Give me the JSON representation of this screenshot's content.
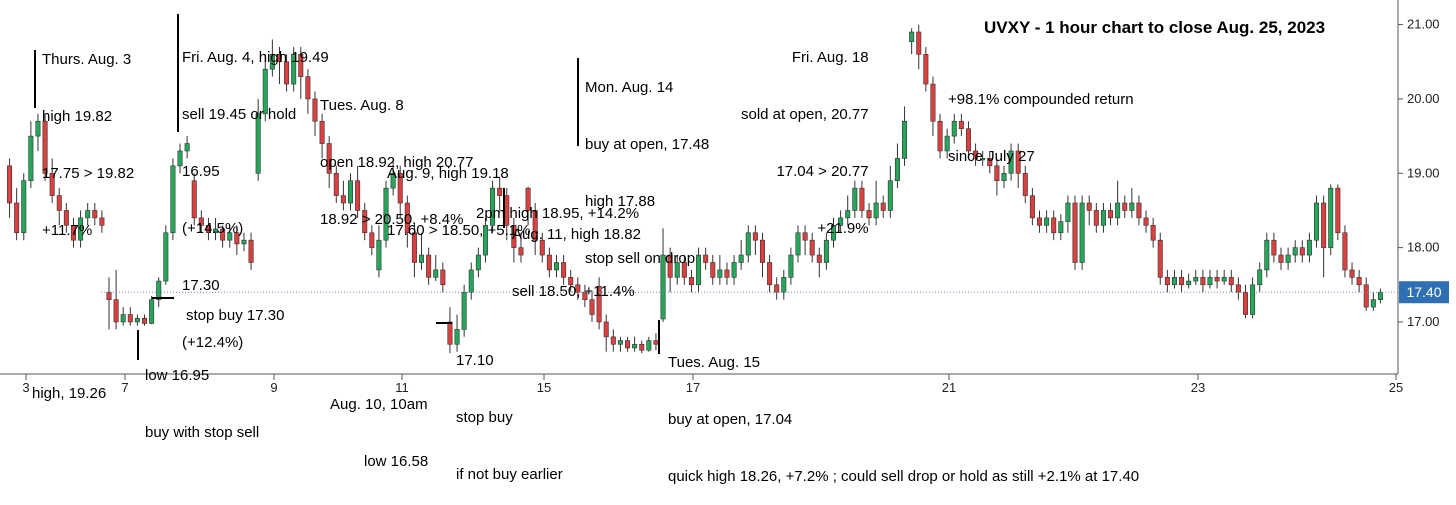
{
  "chart_data": {
    "type": "candlestick",
    "title": "UVXY - 1 hour chart to close Aug. 25, 2023",
    "ylim": [
      16.3,
      21.25
    ],
    "y_ticks": [
      "17.00",
      "18.00",
      "19.00",
      "20.00",
      "21.00"
    ],
    "x_ticks": [
      "3",
      "7",
      "9",
      "11",
      "15",
      "17",
      "21",
      "23",
      "25"
    ],
    "last_price": "17.40",
    "reference_line": 17.4,
    "colors": {
      "up": "#26a65b",
      "down": "#d9403f",
      "axis": "#555555",
      "ref_line": "#6a8bb0",
      "price_label": "#2f6fb4"
    },
    "candles": [
      [
        19.1,
        18.6,
        19.2,
        18.4
      ],
      [
        18.6,
        18.2,
        18.8,
        18.1
      ],
      [
        18.2,
        18.9,
        19.0,
        18.1
      ],
      [
        18.9,
        19.5,
        19.7,
        18.8
      ],
      [
        19.5,
        19.7,
        19.8,
        19.3
      ],
      [
        19.7,
        19.0,
        19.8,
        18.9
      ],
      [
        19.0,
        18.7,
        19.2,
        18.6
      ],
      [
        18.7,
        18.5,
        18.8,
        18.3
      ],
      [
        18.5,
        18.3,
        18.6,
        18.2
      ],
      [
        18.3,
        18.1,
        18.4,
        18.0
      ],
      [
        18.1,
        18.4,
        18.5,
        18.0
      ],
      [
        18.4,
        18.5,
        18.6,
        18.3
      ],
      [
        18.5,
        18.4,
        18.6,
        18.3
      ],
      [
        18.4,
        18.3,
        18.5,
        18.2
      ],
      [
        17.4,
        17.3,
        17.6,
        16.9
      ],
      [
        17.3,
        17.0,
        17.7,
        16.9
      ],
      [
        17.0,
        17.1,
        17.2,
        16.95
      ],
      [
        17.1,
        17.0,
        17.2,
        16.95
      ],
      [
        17.0,
        17.05,
        17.1,
        16.95
      ],
      [
        17.05,
        16.98,
        17.1,
        16.95
      ],
      [
        16.98,
        17.3,
        17.35,
        16.97
      ],
      [
        17.3,
        17.55,
        17.6,
        17.2
      ],
      [
        17.55,
        18.2,
        18.3,
        17.5
      ],
      [
        18.2,
        19.1,
        19.2,
        18.1
      ],
      [
        19.1,
        19.3,
        19.4,
        19.0
      ],
      [
        19.3,
        19.4,
        19.5,
        19.2
      ],
      [
        18.9,
        18.4,
        19.0,
        18.3
      ],
      [
        18.4,
        18.3,
        18.5,
        18.2
      ],
      [
        18.3,
        18.2,
        18.4,
        18.1
      ],
      [
        18.2,
        18.25,
        18.4,
        18.1
      ],
      [
        18.25,
        18.1,
        18.3,
        18.0
      ],
      [
        18.1,
        18.2,
        18.3,
        18.0
      ],
      [
        18.2,
        18.05,
        18.3,
        17.9
      ],
      [
        18.05,
        18.1,
        18.2,
        17.95
      ],
      [
        18.1,
        17.8,
        18.2,
        17.7
      ],
      [
        19.0,
        19.8,
        20.0,
        18.9
      ],
      [
        19.8,
        20.4,
        20.6,
        19.7
      ],
      [
        20.4,
        20.6,
        20.8,
        20.3
      ],
      [
        20.6,
        20.5,
        20.7,
        20.2
      ],
      [
        20.5,
        20.2,
        20.6,
        20.1
      ],
      [
        20.2,
        20.6,
        20.7,
        20.1
      ],
      [
        20.6,
        20.3,
        20.7,
        20.0
      ],
      [
        20.3,
        20.0,
        20.4,
        19.8
      ],
      [
        20.0,
        19.7,
        20.1,
        19.5
      ],
      [
        19.7,
        19.4,
        19.8,
        19.2
      ],
      [
        19.4,
        19.0,
        19.5,
        18.8
      ],
      [
        19.0,
        18.7,
        19.1,
        18.6
      ],
      [
        18.7,
        18.6,
        18.9,
        18.5
      ],
      [
        18.6,
        18.9,
        19.0,
        18.5
      ],
      [
        18.9,
        18.5,
        19.1,
        18.4
      ],
      [
        18.5,
        18.2,
        18.6,
        18.1
      ],
      [
        18.2,
        18.0,
        18.3,
        17.9
      ],
      [
        17.7,
        18.1,
        18.3,
        17.6
      ],
      [
        18.1,
        18.8,
        18.9,
        18.0
      ],
      [
        18.8,
        19.0,
        19.2,
        18.7
      ],
      [
        19.0,
        18.6,
        19.1,
        18.4
      ],
      [
        18.6,
        18.2,
        18.7,
        18.0
      ],
      [
        18.2,
        17.8,
        18.3,
        17.6
      ],
      [
        17.8,
        17.9,
        18.2,
        17.7
      ],
      [
        17.9,
        17.6,
        18.0,
        17.5
      ],
      [
        17.6,
        17.7,
        17.9,
        17.55
      ],
      [
        17.7,
        17.5,
        17.8,
        17.4
      ],
      [
        17.0,
        16.7,
        17.2,
        16.58
      ],
      [
        16.7,
        16.9,
        17.1,
        16.6
      ],
      [
        16.9,
        17.4,
        17.5,
        16.8
      ],
      [
        17.4,
        17.7,
        17.8,
        17.3
      ],
      [
        17.7,
        17.9,
        18.0,
        17.6
      ],
      [
        17.9,
        18.3,
        18.4,
        17.8
      ],
      [
        18.3,
        18.8,
        18.9,
        18.2
      ],
      [
        18.8,
        18.7,
        18.95,
        18.5
      ],
      [
        18.7,
        18.3,
        18.8,
        18.1
      ],
      [
        18.3,
        18.0,
        18.4,
        17.8
      ],
      [
        18.0,
        17.9,
        18.2,
        17.8
      ],
      [
        18.8,
        18.5,
        18.82,
        18.3
      ],
      [
        18.5,
        18.1,
        18.6,
        17.9
      ],
      [
        18.1,
        17.9,
        18.2,
        17.8
      ],
      [
        17.9,
        17.7,
        18.0,
        17.6
      ],
      [
        17.7,
        17.8,
        17.9,
        17.6
      ],
      [
        17.8,
        17.6,
        17.9,
        17.5
      ],
      [
        17.6,
        17.5,
        17.7,
        17.4
      ],
      [
        17.5,
        17.4,
        17.6,
        17.3
      ],
      [
        17.4,
        17.3,
        17.5,
        17.2
      ],
      [
        17.3,
        17.1,
        17.4,
        17.0
      ],
      [
        17.48,
        17.0,
        17.6,
        16.9
      ],
      [
        17.0,
        16.8,
        17.1,
        16.6
      ],
      [
        16.8,
        16.7,
        16.9,
        16.6
      ],
      [
        16.7,
        16.75,
        16.8,
        16.6
      ],
      [
        16.75,
        16.65,
        16.8,
        16.6
      ],
      [
        16.65,
        16.7,
        16.8,
        16.6
      ],
      [
        16.7,
        16.62,
        16.75,
        16.58
      ],
      [
        16.62,
        16.75,
        16.8,
        16.6
      ],
      [
        16.75,
        16.7,
        16.85,
        16.62
      ],
      [
        17.04,
        17.9,
        18.26,
        17.0
      ],
      [
        17.9,
        17.6,
        18.0,
        17.4
      ],
      [
        17.6,
        17.8,
        17.9,
        17.5
      ],
      [
        17.8,
        17.6,
        17.9,
        17.5
      ],
      [
        17.6,
        17.5,
        17.7,
        17.4
      ],
      [
        17.5,
        17.9,
        18.0,
        17.4
      ],
      [
        17.9,
        17.8,
        18.0,
        17.7
      ],
      [
        17.8,
        17.6,
        17.9,
        17.5
      ],
      [
        17.6,
        17.7,
        17.9,
        17.5
      ],
      [
        17.7,
        17.6,
        17.8,
        17.5
      ],
      [
        17.6,
        17.8,
        17.9,
        17.5
      ],
      [
        17.8,
        17.9,
        18.1,
        17.7
      ],
      [
        17.9,
        18.2,
        18.3,
        17.8
      ],
      [
        18.2,
        18.1,
        18.3,
        17.9
      ],
      [
        18.1,
        17.8,
        18.2,
        17.6
      ],
      [
        17.8,
        17.5,
        17.9,
        17.4
      ],
      [
        17.5,
        17.4,
        17.6,
        17.3
      ],
      [
        17.4,
        17.6,
        17.7,
        17.3
      ],
      [
        17.6,
        17.9,
        18.0,
        17.5
      ],
      [
        17.9,
        18.2,
        18.3,
        17.8
      ],
      [
        18.2,
        18.1,
        18.3,
        17.9
      ],
      [
        18.1,
        17.9,
        18.2,
        17.8
      ],
      [
        17.9,
        17.8,
        18.0,
        17.6
      ],
      [
        17.8,
        18.1,
        18.2,
        17.7
      ],
      [
        18.1,
        18.3,
        18.4,
        18.0
      ],
      [
        18.3,
        18.4,
        18.5,
        18.2
      ],
      [
        18.4,
        18.5,
        18.7,
        18.3
      ],
      [
        18.5,
        18.8,
        18.9,
        18.4
      ],
      [
        18.8,
        18.5,
        18.9,
        18.4
      ],
      [
        18.5,
        18.4,
        18.6,
        18.3
      ],
      [
        18.4,
        18.6,
        18.9,
        18.3
      ],
      [
        18.6,
        18.5,
        18.7,
        18.4
      ],
      [
        18.5,
        18.9,
        19.1,
        18.4
      ],
      [
        18.9,
        19.2,
        19.4,
        18.8
      ],
      [
        19.2,
        19.7,
        19.9,
        19.1
      ],
      [
        20.77,
        20.9,
        20.95,
        20.6
      ],
      [
        20.9,
        20.6,
        21.0,
        20.4
      ],
      [
        20.6,
        20.2,
        20.7,
        20.1
      ],
      [
        20.2,
        19.7,
        20.3,
        19.5
      ],
      [
        19.7,
        19.3,
        19.8,
        19.2
      ],
      [
        19.3,
        19.5,
        19.6,
        19.2
      ],
      [
        19.5,
        19.7,
        19.8,
        19.4
      ],
      [
        19.7,
        19.6,
        19.8,
        19.5
      ],
      [
        19.6,
        19.3,
        19.7,
        19.2
      ],
      [
        19.3,
        19.2,
        19.4,
        19.1
      ],
      [
        19.2,
        19.2,
        19.3,
        19.1
      ],
      [
        19.2,
        19.1,
        19.3,
        19.0
      ],
      [
        19.1,
        18.9,
        19.2,
        18.7
      ],
      [
        18.9,
        19.0,
        19.1,
        18.8
      ],
      [
        19.0,
        19.3,
        19.4,
        18.9
      ],
      [
        19.3,
        19.0,
        19.4,
        18.8
      ],
      [
        19.0,
        18.7,
        19.1,
        18.6
      ],
      [
        18.7,
        18.4,
        18.8,
        18.3
      ],
      [
        18.4,
        18.3,
        18.5,
        18.2
      ],
      [
        18.3,
        18.4,
        18.5,
        18.2
      ],
      [
        18.4,
        18.2,
        18.5,
        18.1
      ],
      [
        18.2,
        18.35,
        18.45,
        18.1
      ],
      [
        18.35,
        18.6,
        18.7,
        18.2
      ],
      [
        18.6,
        17.8,
        18.7,
        17.7
      ],
      [
        17.8,
        18.6,
        18.7,
        17.7
      ],
      [
        18.6,
        18.5,
        18.7,
        18.3
      ],
      [
        18.5,
        18.3,
        18.6,
        18.2
      ],
      [
        18.3,
        18.5,
        18.6,
        18.2
      ],
      [
        18.5,
        18.4,
        18.6,
        18.3
      ],
      [
        18.4,
        18.6,
        18.9,
        18.3
      ],
      [
        18.6,
        18.5,
        18.7,
        18.4
      ],
      [
        18.5,
        18.6,
        18.8,
        18.4
      ],
      [
        18.6,
        18.4,
        18.7,
        18.3
      ],
      [
        18.4,
        18.3,
        18.5,
        18.2
      ],
      [
        18.3,
        18.1,
        18.4,
        18.0
      ],
      [
        18.1,
        17.6,
        18.2,
        17.5
      ],
      [
        17.6,
        17.5,
        17.7,
        17.4
      ],
      [
        17.5,
        17.6,
        17.7,
        17.45
      ],
      [
        17.6,
        17.5,
        17.7,
        17.4
      ],
      [
        17.5,
        17.55,
        17.65,
        17.45
      ],
      [
        17.55,
        17.6,
        17.7,
        17.5
      ],
      [
        17.6,
        17.5,
        17.7,
        17.4
      ],
      [
        17.5,
        17.6,
        17.7,
        17.45
      ],
      [
        17.6,
        17.55,
        17.7,
        17.45
      ],
      [
        17.55,
        17.6,
        17.7,
        17.5
      ],
      [
        17.6,
        17.5,
        17.7,
        17.4
      ],
      [
        17.5,
        17.4,
        17.6,
        17.3
      ],
      [
        17.4,
        17.1,
        17.5,
        17.05
      ],
      [
        17.1,
        17.5,
        17.6,
        17.05
      ],
      [
        17.5,
        17.7,
        17.8,
        17.4
      ],
      [
        17.7,
        18.1,
        18.2,
        17.6
      ],
      [
        18.1,
        17.9,
        18.2,
        17.8
      ],
      [
        17.9,
        17.8,
        18.0,
        17.7
      ],
      [
        17.8,
        17.9,
        18.0,
        17.7
      ],
      [
        17.9,
        18.0,
        18.1,
        17.8
      ],
      [
        18.0,
        17.9,
        18.1,
        17.8
      ],
      [
        17.9,
        18.1,
        18.2,
        17.8
      ],
      [
        18.1,
        18.6,
        18.7,
        18.0
      ],
      [
        18.6,
        18.0,
        18.7,
        17.6
      ],
      [
        18.0,
        18.8,
        18.85,
        17.9
      ],
      [
        18.8,
        18.2,
        18.85,
        18.1
      ],
      [
        18.2,
        17.7,
        18.3,
        17.6
      ],
      [
        17.7,
        17.6,
        17.8,
        17.5
      ],
      [
        17.6,
        17.5,
        17.7,
        17.4
      ],
      [
        17.5,
        17.2,
        17.6,
        17.15
      ],
      [
        17.2,
        17.3,
        17.4,
        17.15
      ],
      [
        17.3,
        17.4,
        17.45,
        17.25
      ]
    ]
  },
  "title": "UVXY - 1 hour chart to close Aug. 25, 2023",
  "annotations": {
    "aug3": [
      "Thurs. Aug. 3",
      "high 19.82",
      "17.75 > 19.82",
      "+11.7%"
    ],
    "aug4": [
      "Fri. Aug. 4, high 19.49",
      "sell 19.45 or hold",
      "16.95",
      "(+14.5%)",
      "17.30",
      "(+12.4%)"
    ],
    "aug8": [
      "Tues. Aug. 8",
      "open 18.92, high 20.77",
      "18.92 > 20.50, +8.4%"
    ],
    "aug9": [
      "Aug. 9, high 19.18",
      "17.60 > 18.50, +5.1%"
    ],
    "aug10_2pm": [
      "2pm high 18.95, +14.2%"
    ],
    "aug11": [
      "Aug. 11, high 18.82",
      "sell 18.50, +11.4%"
    ],
    "aug14": [
      "Mon. Aug. 14",
      "buy at open, 17.48",
      "high 17.88",
      "stop sell on drop"
    ],
    "aug18": [
      "Fri. Aug. 18",
      "sold at open, 20.77",
      "17.04 > 20.77",
      "+21.9%"
    ],
    "return": [
      "+98.1% compounded return",
      "since July 27"
    ],
    "stop_buy": [
      "stop buy 17.30"
    ],
    "high1926": [
      "high, 19.26"
    ],
    "low1695": [
      "low 16.95",
      "buy with stop sell"
    ],
    "aug10_10am": [
      "Aug. 10, 10am",
      "low 16.58"
    ],
    "stop1710": [
      "17.10",
      "stop buy",
      "if not buy earlier"
    ],
    "aug15": [
      "Tues. Aug. 15",
      "buy at open, 17.04",
      "quick high 18.26, +7.2% ; could sell drop or hold as still +2.1% at 17.40"
    ]
  }
}
